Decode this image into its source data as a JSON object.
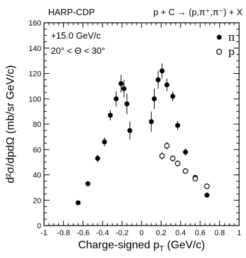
{
  "chart_data": {
    "type": "scatter",
    "title_left": "HARP-CDP",
    "title_right": "p + C → (p,π⁺,π⁻) + X",
    "annotations": [
      "+15.0 GeV/c",
      "20° < Θ < 30°"
    ],
    "xlabel": "Charge-signed p",
    "xlabel_sub": "T",
    "xlabel_unit": " (GeV/c)",
    "ylabel": "d²σ/dpdΩ (mb/sr GeV/c)",
    "xlim": [
      -1,
      1
    ],
    "ylim": [
      0,
      160
    ],
    "x_ticks": [
      -1,
      -0.8,
      -0.6,
      -0.4,
      -0.2,
      0,
      0.2,
      0.4,
      0.6,
      0.8,
      1
    ],
    "x_tick_labels": [
      "-1",
      "-0.8",
      "-0.6",
      "-0.4",
      "-0.2",
      "0",
      "0.2",
      "0.4",
      "0.6",
      "0.8",
      "1"
    ],
    "y_ticks": [
      0,
      20,
      40,
      60,
      80,
      100,
      120,
      140,
      160
    ],
    "y_tick_labels": [
      "0",
      "20",
      "40",
      "60",
      "80",
      "100",
      "120",
      "140",
      "160"
    ],
    "grid": false,
    "legend_position": "top-right",
    "series": [
      {
        "name": "π",
        "marker": "filled-circle",
        "points": [
          {
            "x": -0.65,
            "y": 18,
            "err": 1.5
          },
          {
            "x": -0.55,
            "y": 33,
            "err": 2
          },
          {
            "x": -0.45,
            "y": 53,
            "err": 3
          },
          {
            "x": -0.38,
            "y": 66,
            "err": 3.5
          },
          {
            "x": -0.32,
            "y": 87,
            "err": 4
          },
          {
            "x": -0.26,
            "y": 100,
            "err": 6
          },
          {
            "x": -0.21,
            "y": 112,
            "err": 7
          },
          {
            "x": -0.18,
            "y": 108,
            "err": 7
          },
          {
            "x": -0.15,
            "y": 96,
            "err": 8
          },
          {
            "x": -0.12,
            "y": 75,
            "err": 7
          },
          {
            "x": 0.1,
            "y": 82,
            "err": 8
          },
          {
            "x": 0.13,
            "y": 100,
            "err": 8
          },
          {
            "x": 0.17,
            "y": 115,
            "err": 7
          },
          {
            "x": 0.21,
            "y": 122,
            "err": 6
          },
          {
            "x": 0.26,
            "y": 111,
            "err": 5
          },
          {
            "x": 0.32,
            "y": 102,
            "err": 4
          },
          {
            "x": 0.37,
            "y": 79,
            "err": 3.5
          },
          {
            "x": 0.45,
            "y": 58,
            "err": 3
          },
          {
            "x": 0.55,
            "y": 38,
            "err": 2
          },
          {
            "x": 0.67,
            "y": 24,
            "err": 1.5
          }
        ]
      },
      {
        "name": "p",
        "marker": "open-circle",
        "points": [
          {
            "x": 0.21,
            "y": 55,
            "err": 3
          },
          {
            "x": 0.26,
            "y": 63,
            "err": 3
          },
          {
            "x": 0.32,
            "y": 53,
            "err": 2.5
          },
          {
            "x": 0.37,
            "y": 49,
            "err": 2.5
          },
          {
            "x": 0.45,
            "y": 43,
            "err": 2
          },
          {
            "x": 0.55,
            "y": 37,
            "err": 2
          },
          {
            "x": 0.67,
            "y": 31,
            "err": 1.5
          }
        ]
      }
    ]
  }
}
